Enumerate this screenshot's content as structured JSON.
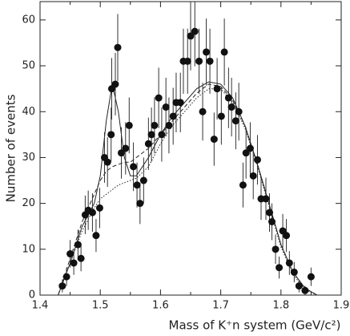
{
  "chart_data": {
    "type": "scatter",
    "xlabel": "Mass of K⁺n system (GeV/c²)",
    "ylabel": "Number of events",
    "xlim": [
      1.4,
      1.9
    ],
    "xticks": [
      1.4,
      1.45,
      1.5,
      1.55,
      1.6,
      1.65,
      1.7,
      1.75,
      1.8,
      1.85,
      1.9
    ],
    "ylim": [
      0,
      64
    ],
    "yticks": [
      0,
      10,
      20,
      30,
      40,
      50,
      60
    ],
    "color": "#111111",
    "points": {
      "x": [
        1.437,
        1.444,
        1.45,
        1.456,
        1.463,
        1.468,
        1.475,
        1.48,
        1.487,
        1.493,
        1.499,
        1.507,
        1.512,
        1.518,
        1.519,
        1.525,
        1.529,
        1.535,
        1.542,
        1.548,
        1.555,
        1.561,
        1.566,
        1.572,
        1.58,
        1.585,
        1.59,
        1.597,
        1.602,
        1.609,
        1.614,
        1.621,
        1.626,
        1.633,
        1.638,
        1.645,
        1.65,
        1.657,
        1.664,
        1.67,
        1.676,
        1.682,
        1.689,
        1.694,
        1.701,
        1.706,
        1.713,
        1.718,
        1.725,
        1.73,
        1.737,
        1.742,
        1.749,
        1.754,
        1.761,
        1.767,
        1.775,
        1.781,
        1.785,
        1.791,
        1.797,
        1.803,
        1.809,
        1.814,
        1.822,
        1.83,
        1.84,
        1.85
      ],
      "values": [
        2,
        4,
        9,
        7,
        11,
        8,
        17.5,
        18.5,
        18,
        13,
        19,
        30,
        29,
        35,
        45,
        46,
        54,
        31,
        32,
        37,
        28,
        24,
        20,
        25,
        33,
        35,
        37,
        43,
        35,
        41,
        37,
        39,
        42,
        42,
        51,
        51,
        56.5,
        57.5,
        51,
        40,
        53,
        51,
        34,
        45,
        39,
        53,
        43,
        41,
        38,
        40,
        24,
        31,
        32,
        26,
        29.5,
        21,
        21,
        18,
        16,
        10,
        6,
        14,
        13,
        7,
        5,
        2,
        1,
        4
      ],
      "errors": [
        1.4,
        2,
        3,
        2.6,
        3.3,
        2.8,
        4.2,
        4.3,
        4.2,
        3.6,
        4.4,
        5.5,
        5.4,
        5.9,
        6.7,
        6.8,
        7.3,
        5.6,
        5.7,
        6.1,
        5.3,
        4.9,
        4.5,
        5,
        5.7,
        5.9,
        6.1,
        6.6,
        5.9,
        6.4,
        6.1,
        6.2,
        6.5,
        6.5,
        7.1,
        7.1,
        7.5,
        7.6,
        7.1,
        6.3,
        7.3,
        7.1,
        5.8,
        6.7,
        6.2,
        7.3,
        6.6,
        6.4,
        6.2,
        6.3,
        4.9,
        5.6,
        5.7,
        5.1,
        5.4,
        4.6,
        4.6,
        4.2,
        4,
        3.2,
        2.4,
        3.7,
        3.6,
        2.6,
        2.2,
        1.4,
        1,
        2
      ]
    },
    "series": [
      {
        "style": "solid",
        "x": [
          1.43,
          1.45,
          1.47,
          1.49,
          1.5,
          1.51,
          1.52,
          1.53,
          1.54,
          1.55,
          1.56,
          1.58,
          1.6,
          1.62,
          1.64,
          1.66,
          1.68,
          1.7,
          1.72,
          1.74,
          1.76,
          1.78,
          1.8,
          1.82,
          1.84,
          1.86
        ],
        "values": [
          0,
          7,
          15,
          20,
          26,
          38,
          46,
          40,
          30,
          26,
          26,
          30,
          35,
          39,
          42,
          45,
          46.5,
          46,
          43,
          37,
          29,
          20,
          11,
          5,
          1.5,
          0
        ]
      },
      {
        "style": "dashed",
        "x": [
          1.43,
          1.45,
          1.47,
          1.49,
          1.5,
          1.51,
          1.52,
          1.53,
          1.54,
          1.55,
          1.56,
          1.58,
          1.6,
          1.62,
          1.64,
          1.66,
          1.68,
          1.7,
          1.72,
          1.74,
          1.76,
          1.78,
          1.8,
          1.82,
          1.84,
          1.86
        ],
        "values": [
          0,
          8,
          16,
          22,
          25,
          27,
          28,
          28.5,
          29,
          29,
          30,
          32,
          35,
          38,
          41,
          44,
          46,
          45.5,
          42.5,
          37,
          29,
          20,
          11,
          5,
          1.5,
          0
        ]
      },
      {
        "style": "dotted",
        "x": [
          1.43,
          1.45,
          1.47,
          1.49,
          1.5,
          1.51,
          1.52,
          1.53,
          1.54,
          1.55,
          1.56,
          1.58,
          1.6,
          1.62,
          1.64,
          1.66,
          1.68,
          1.7,
          1.72,
          1.74,
          1.76,
          1.78,
          1.8,
          1.82,
          1.84,
          1.86
        ],
        "values": [
          0,
          7,
          14,
          19,
          21,
          22,
          23,
          24,
          24.5,
          25,
          25.5,
          28,
          33,
          37,
          40,
          43,
          45,
          45,
          42,
          36.5,
          28.5,
          19.5,
          10.5,
          4.5,
          1.2,
          0
        ]
      }
    ]
  }
}
